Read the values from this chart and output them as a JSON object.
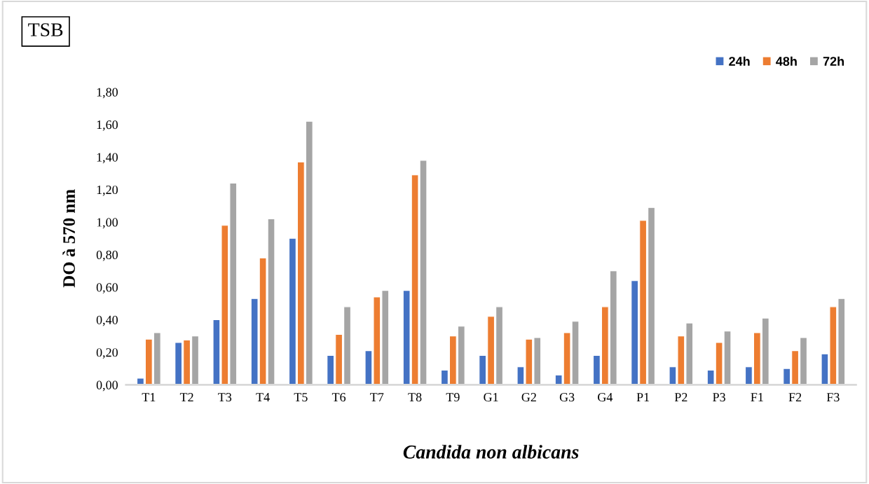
{
  "chart_data": {
    "type": "bar",
    "title": "TSB",
    "xlabel": "Candida non albicans",
    "ylabel": "DO à 570 nm",
    "categories": [
      "T1",
      "T2",
      "T3",
      "T4",
      "T5",
      "T6",
      "T7",
      "T8",
      "T9",
      "G1",
      "G2",
      "G3",
      "G4",
      "P1",
      "P2",
      "P3",
      "F1",
      "F2",
      "F3"
    ],
    "series": [
      {
        "name": "24h",
        "color": "#4472c4",
        "values": [
          0.04,
          0.26,
          0.4,
          0.53,
          0.9,
          0.18,
          0.21,
          0.58,
          0.09,
          0.18,
          0.11,
          0.06,
          0.18,
          0.64,
          0.11,
          0.09,
          0.11,
          0.1,
          0.19
        ]
      },
      {
        "name": "48h",
        "color": "#ed7d31",
        "values": [
          0.28,
          0.275,
          0.98,
          0.78,
          1.37,
          0.31,
          0.54,
          1.29,
          0.3,
          0.42,
          0.28,
          0.32,
          0.48,
          1.01,
          0.3,
          0.26,
          0.32,
          0.21,
          0.48
        ]
      },
      {
        "name": "72h",
        "color": "#a5a5a5",
        "values": [
          0.32,
          0.3,
          1.24,
          1.02,
          1.62,
          0.48,
          0.58,
          1.38,
          0.36,
          0.48,
          0.29,
          0.39,
          0.7,
          1.09,
          0.38,
          0.33,
          0.41,
          0.29,
          0.53
        ]
      }
    ],
    "ylim": [
      0,
      1.8
    ],
    "yticks": [
      {
        "value": 0,
        "label": "0,00"
      },
      {
        "value": 0.2,
        "label": "0,20"
      },
      {
        "value": 0.4,
        "label": "0,40"
      },
      {
        "value": 0.6,
        "label": "0,60"
      },
      {
        "value": 0.8,
        "label": "0,80"
      },
      {
        "value": 1.0,
        "label": "1,00"
      },
      {
        "value": 1.2,
        "label": "1,20"
      },
      {
        "value": 1.4,
        "label": "1,40"
      },
      {
        "value": 1.6,
        "label": "1,60"
      },
      {
        "value": 1.8,
        "label": "1,80"
      }
    ],
    "grid": false,
    "legend": "top right"
  }
}
